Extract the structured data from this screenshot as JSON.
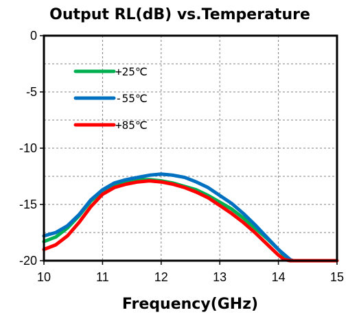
{
  "chart_data": {
    "type": "line",
    "title": "Output RL(dB) vs.Temperature",
    "xlabel": "Frequency(GHz)",
    "ylabel": "",
    "xlim": [
      10,
      15
    ],
    "ylim": [
      -20,
      0
    ],
    "x_ticks": [
      "10",
      "11",
      "12",
      "13",
      "14",
      "15"
    ],
    "y_ticks": [
      "0",
      "-5",
      "-10",
      "-15",
      "-20"
    ],
    "x_tick_values": [
      10,
      11,
      12,
      13,
      14,
      15
    ],
    "y_tick_values": [
      0,
      -5,
      -10,
      -15,
      -20
    ],
    "grid": true,
    "legend_position": "upper-left",
    "series": [
      {
        "name": "+25℃",
        "color": "#00b050",
        "x": [
          10.0,
          10.2,
          10.4,
          10.6,
          10.8,
          11.0,
          11.2,
          11.4,
          11.6,
          11.8,
          12.0,
          12.2,
          12.4,
          12.6,
          12.8,
          13.0,
          13.2,
          13.4,
          13.6,
          13.8,
          14.0,
          14.1,
          14.2
        ],
        "y": [
          -18.3,
          -17.9,
          -17.1,
          -16.0,
          -14.7,
          -13.8,
          -13.3,
          -13.0,
          -12.8,
          -12.8,
          -12.9,
          -13.1,
          -13.4,
          -13.7,
          -14.2,
          -14.8,
          -15.4,
          -16.2,
          -17.1,
          -18.0,
          -19.0,
          -19.6,
          -20.0
        ]
      },
      {
        "name": "-55℃",
        "color": "#0070c0",
        "x": [
          10.0,
          10.2,
          10.4,
          10.6,
          10.8,
          11.0,
          11.2,
          11.4,
          11.6,
          11.8,
          12.0,
          12.2,
          12.4,
          12.6,
          12.8,
          13.0,
          13.2,
          13.4,
          13.6,
          13.8,
          14.0,
          14.2,
          14.25
        ],
        "y": [
          -17.8,
          -17.5,
          -16.9,
          -15.9,
          -14.6,
          -13.7,
          -13.1,
          -12.8,
          -12.6,
          -12.4,
          -12.3,
          -12.4,
          -12.6,
          -13.0,
          -13.5,
          -14.2,
          -14.9,
          -15.8,
          -16.8,
          -17.9,
          -19.0,
          -19.9,
          -20.0
        ]
      },
      {
        "name": "+85℃",
        "color": "#ff0000",
        "x": [
          10.0,
          10.2,
          10.4,
          10.6,
          10.8,
          11.0,
          11.2,
          11.4,
          11.6,
          11.8,
          12.0,
          12.2,
          12.4,
          12.6,
          12.8,
          13.0,
          13.2,
          13.4,
          13.6,
          13.8,
          14.0,
          14.1,
          14.2,
          15.0
        ],
        "y": [
          -19.0,
          -18.6,
          -17.8,
          -16.6,
          -15.2,
          -14.1,
          -13.5,
          -13.2,
          -13.0,
          -12.9,
          -13.0,
          -13.2,
          -13.5,
          -13.9,
          -14.4,
          -15.1,
          -15.8,
          -16.6,
          -17.5,
          -18.5,
          -19.5,
          -19.9,
          -20.0,
          -20.0
        ]
      }
    ]
  }
}
